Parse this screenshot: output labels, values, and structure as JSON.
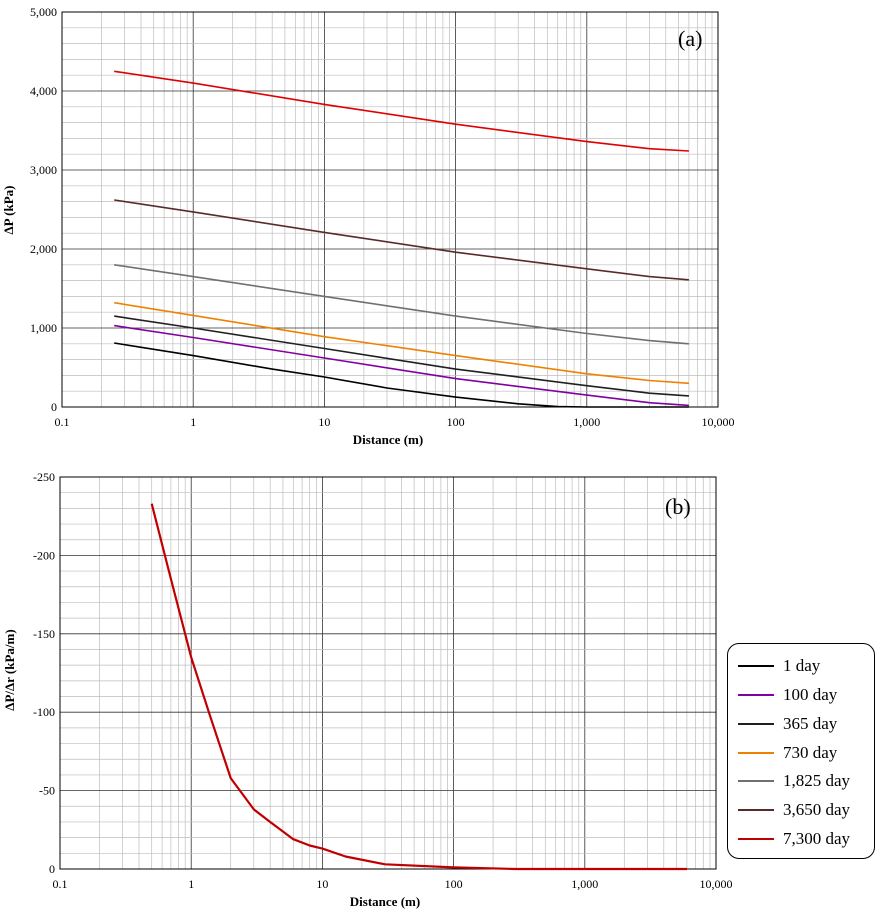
{
  "chart_data": [
    {
      "type": "line",
      "panel_label": "(a)",
      "xlabel": "Distance (m)",
      "ylabel": "ΔP (kPa)",
      "xscale": "log",
      "xlim": [
        0.1,
        10000
      ],
      "ylim": [
        0,
        5000
      ],
      "x_ticks": [
        "0.1",
        "1",
        "10",
        "100",
        "1,000",
        "10,000"
      ],
      "y_ticks": [
        "0",
        "1,000",
        "2,000",
        "3,000",
        "4,000",
        "5,000"
      ],
      "grid": true,
      "series": [
        {
          "name": "1 day",
          "color": "#000000",
          "x": [
            0.25,
            1,
            4,
            10,
            30,
            100,
            300,
            600,
            1000,
            3000,
            6000
          ],
          "y": [
            810,
            650,
            480,
            380,
            240,
            125,
            40,
            5,
            0,
            0,
            0
          ]
        },
        {
          "name": "100 day",
          "color": "#8000a0",
          "x": [
            0.25,
            1,
            10,
            100,
            1000,
            3000,
            6000
          ],
          "y": [
            1030,
            880,
            620,
            360,
            150,
            55,
            20
          ]
        },
        {
          "name": "365 day",
          "color": "#202020",
          "x": [
            0.25,
            1,
            10,
            100,
            1000,
            3000,
            6000
          ],
          "y": [
            1150,
            1000,
            740,
            480,
            270,
            175,
            140
          ]
        },
        {
          "name": "730 day",
          "color": "#f08000",
          "x": [
            0.25,
            1,
            10,
            100,
            1000,
            3000,
            6000
          ],
          "y": [
            1320,
            1160,
            890,
            650,
            420,
            335,
            300
          ]
        },
        {
          "name": "1,825 day",
          "color": "#707070",
          "x": [
            0.25,
            1,
            10,
            100,
            1000,
            3000,
            6000
          ],
          "y": [
            1800,
            1650,
            1400,
            1150,
            930,
            840,
            800
          ]
        },
        {
          "name": "3,650 day",
          "color": "#5a2a2a",
          "x": [
            0.25,
            1,
            10,
            100,
            1000,
            3000,
            6000
          ],
          "y": [
            2620,
            2470,
            2210,
            1960,
            1750,
            1650,
            1610
          ]
        },
        {
          "name": "7,300 day",
          "color": "#e00000",
          "x": [
            0.25,
            1,
            10,
            100,
            1000,
            3000,
            6000
          ],
          "y": [
            4250,
            4100,
            3830,
            3580,
            3360,
            3270,
            3240
          ]
        }
      ]
    },
    {
      "type": "line",
      "panel_label": "(b)",
      "xlabel": "Distance (m)",
      "ylabel": "ΔP/Δr (kPa/m)",
      "xscale": "log",
      "xlim": [
        0.1,
        10000
      ],
      "ylim": [
        0,
        -250
      ],
      "x_ticks": [
        "0.1",
        "1",
        "10",
        "100",
        "1,000",
        "10,000"
      ],
      "y_ticks": [
        "0",
        "-50",
        "-100",
        "-150",
        "-200",
        "-250"
      ],
      "grid": true,
      "series": [
        {
          "name": "7,300 day",
          "color": "#c00000",
          "x": [
            0.5,
            0.7,
            1,
            1.4,
            2,
            3,
            4,
            6,
            8,
            10,
            15,
            30,
            100,
            300,
            1000,
            6000
          ],
          "y": [
            -233,
            -185,
            -135,
            -97,
            -58,
            -38,
            -30,
            -19,
            -15,
            -13,
            -8,
            -3,
            -1,
            0,
            0,
            0
          ]
        }
      ]
    }
  ],
  "legend": {
    "entries": [
      {
        "label": "1 day",
        "color": "#000000"
      },
      {
        "label": "100 day",
        "color": "#8000a0"
      },
      {
        "label": "365 day",
        "color": "#202020"
      },
      {
        "label": "730 day",
        "color": "#f08000"
      },
      {
        "label": "1,825 day",
        "color": "#707070"
      },
      {
        "label": "3,650 day",
        "color": "#5a2a2a"
      },
      {
        "label": "7,300 day",
        "color": "#c00000"
      }
    ]
  }
}
